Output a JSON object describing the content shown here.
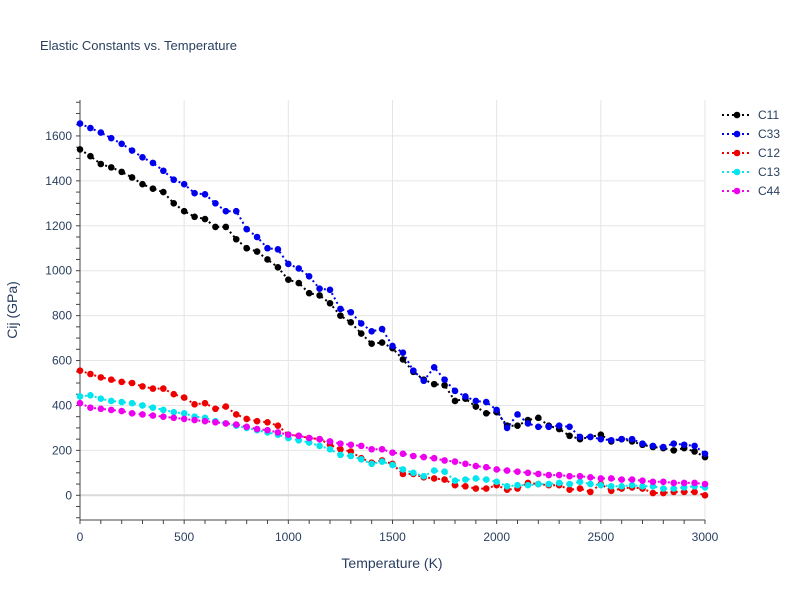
{
  "chart_data": {
    "type": "line",
    "title": "Elastic Constants vs. Temperature",
    "xlabel": "Temperature (K)",
    "ylabel": "Cij (GPa)",
    "xlim": [
      0,
      3000
    ],
    "ylim": [
      -110,
      1760
    ],
    "xticks": [
      0,
      500,
      1000,
      1500,
      2000,
      2500,
      3000
    ],
    "yticks": [
      0,
      200,
      400,
      600,
      800,
      1000,
      1200,
      1400,
      1600
    ],
    "grid": true,
    "legend_position": "top-right",
    "line_style": "dotted with circle markers",
    "series": [
      {
        "name": "C11",
        "color": "#000000",
        "x": [
          0,
          50,
          100,
          150,
          200,
          250,
          300,
          350,
          400,
          450,
          500,
          550,
          600,
          650,
          700,
          750,
          800,
          850,
          900,
          950,
          1000,
          1050,
          1100,
          1150,
          1200,
          1250,
          1300,
          1350,
          1400,
          1450,
          1500,
          1550,
          1600,
          1650,
          1700,
          1750,
          1800,
          1850,
          1900,
          1950,
          2000,
          2050,
          2100,
          2150,
          2200,
          2250,
          2300,
          2350,
          2400,
          2450,
          2500,
          2550,
          2600,
          2650,
          2700,
          2750,
          2800,
          2850,
          2900,
          2950,
          3000
        ],
        "y": [
          1540,
          1510,
          1475,
          1460,
          1440,
          1415,
          1385,
          1365,
          1350,
          1300,
          1265,
          1240,
          1230,
          1195,
          1195,
          1140,
          1100,
          1085,
          1050,
          1015,
          960,
          945,
          900,
          890,
          855,
          800,
          770,
          720,
          675,
          680,
          655,
          605,
          550,
          515,
          495,
          490,
          420,
          430,
          395,
          365,
          370,
          310,
          310,
          335,
          345,
          310,
          295,
          265,
          250,
          260,
          270,
          240,
          250,
          240,
          225,
          215,
          210,
          200,
          210,
          195,
          170
        ]
      },
      {
        "name": "C33",
        "color": "#0000ee",
        "x": [
          0,
          50,
          100,
          150,
          200,
          250,
          300,
          350,
          400,
          450,
          500,
          550,
          600,
          650,
          700,
          750,
          800,
          850,
          900,
          950,
          1000,
          1050,
          1100,
          1150,
          1200,
          1250,
          1300,
          1350,
          1400,
          1450,
          1500,
          1550,
          1600,
          1650,
          1700,
          1750,
          1800,
          1850,
          1900,
          1950,
          2000,
          2050,
          2100,
          2150,
          2200,
          2250,
          2300,
          2350,
          2400,
          2450,
          2500,
          2550,
          2600,
          2650,
          2700,
          2750,
          2800,
          2850,
          2900,
          2950,
          3000
        ],
        "y": [
          1655,
          1635,
          1615,
          1590,
          1565,
          1535,
          1505,
          1480,
          1445,
          1405,
          1385,
          1345,
          1340,
          1300,
          1265,
          1265,
          1185,
          1150,
          1100,
          1095,
          1030,
          1010,
          975,
          920,
          915,
          830,
          815,
          765,
          730,
          740,
          665,
          635,
          555,
          510,
          570,
          515,
          465,
          440,
          420,
          415,
          380,
          300,
          360,
          320,
          305,
          305,
          310,
          305,
          260,
          260,
          250,
          245,
          250,
          250,
          230,
          220,
          215,
          230,
          225,
          220,
          185
        ]
      },
      {
        "name": "C12",
        "color": "#ee0000",
        "x": [
          0,
          50,
          100,
          150,
          200,
          250,
          300,
          350,
          400,
          450,
          500,
          550,
          600,
          650,
          700,
          750,
          800,
          850,
          900,
          950,
          1000,
          1050,
          1100,
          1150,
          1200,
          1250,
          1300,
          1350,
          1400,
          1450,
          1500,
          1550,
          1600,
          1650,
          1700,
          1750,
          1800,
          1850,
          1900,
          1950,
          2000,
          2050,
          2100,
          2150,
          2200,
          2250,
          2300,
          2350,
          2400,
          2450,
          2500,
          2550,
          2600,
          2650,
          2700,
          2750,
          2800,
          2850,
          2900,
          2950,
          3000
        ],
        "y": [
          555,
          540,
          525,
          515,
          505,
          500,
          485,
          475,
          475,
          450,
          435,
          405,
          410,
          385,
          395,
          360,
          340,
          330,
          325,
          310,
          270,
          265,
          255,
          250,
          225,
          205,
          195,
          165,
          145,
          155,
          140,
          95,
          95,
          80,
          75,
          70,
          45,
          40,
          30,
          30,
          45,
          25,
          30,
          55,
          50,
          45,
          45,
          25,
          30,
          15,
          50,
          20,
          30,
          35,
          30,
          10,
          10,
          15,
          15,
          15,
          0
        ]
      },
      {
        "name": "C13",
        "color": "#00e5ee",
        "x": [
          0,
          50,
          100,
          150,
          200,
          250,
          300,
          350,
          400,
          450,
          500,
          550,
          600,
          650,
          700,
          750,
          800,
          850,
          900,
          950,
          1000,
          1050,
          1100,
          1150,
          1200,
          1250,
          1300,
          1350,
          1400,
          1450,
          1500,
          1550,
          1600,
          1650,
          1700,
          1750,
          1800,
          1850,
          1900,
          1950,
          2000,
          2050,
          2100,
          2150,
          2200,
          2250,
          2300,
          2350,
          2400,
          2450,
          2500,
          2550,
          2600,
          2650,
          2700,
          2750,
          2800,
          2850,
          2900,
          2950,
          3000
        ],
        "y": [
          440,
          445,
          430,
          420,
          415,
          410,
          400,
          390,
          380,
          370,
          365,
          350,
          345,
          330,
          320,
          310,
          300,
          290,
          280,
          270,
          255,
          245,
          235,
          220,
          205,
          180,
          175,
          160,
          140,
          150,
          135,
          115,
          100,
          85,
          110,
          105,
          65,
          70,
          75,
          70,
          60,
          40,
          45,
          45,
          50,
          50,
          55,
          50,
          60,
          50,
          45,
          40,
          40,
          45,
          40,
          40,
          30,
          30,
          35,
          40,
          35
        ]
      },
      {
        "name": "C44",
        "color": "#ee00ee",
        "x": [
          0,
          50,
          100,
          150,
          200,
          250,
          300,
          350,
          400,
          450,
          500,
          550,
          600,
          650,
          700,
          750,
          800,
          850,
          900,
          950,
          1000,
          1050,
          1100,
          1150,
          1200,
          1250,
          1300,
          1350,
          1400,
          1450,
          1500,
          1550,
          1600,
          1650,
          1700,
          1750,
          1800,
          1850,
          1900,
          1950,
          2000,
          2050,
          2100,
          2150,
          2200,
          2250,
          2300,
          2350,
          2400,
          2450,
          2500,
          2550,
          2600,
          2650,
          2700,
          2750,
          2800,
          2850,
          2900,
          2950,
          3000
        ],
        "y": [
          410,
          390,
          385,
          380,
          375,
          365,
          360,
          355,
          350,
          345,
          340,
          335,
          330,
          325,
          320,
          315,
          305,
          295,
          290,
          280,
          270,
          265,
          255,
          250,
          240,
          230,
          225,
          220,
          205,
          205,
          190,
          185,
          175,
          170,
          165,
          155,
          150,
          140,
          130,
          125,
          115,
          110,
          105,
          100,
          95,
          90,
          90,
          85,
          85,
          80,
          75,
          75,
          70,
          70,
          65,
          60,
          60,
          55,
          55,
          55,
          50
        ]
      }
    ]
  }
}
